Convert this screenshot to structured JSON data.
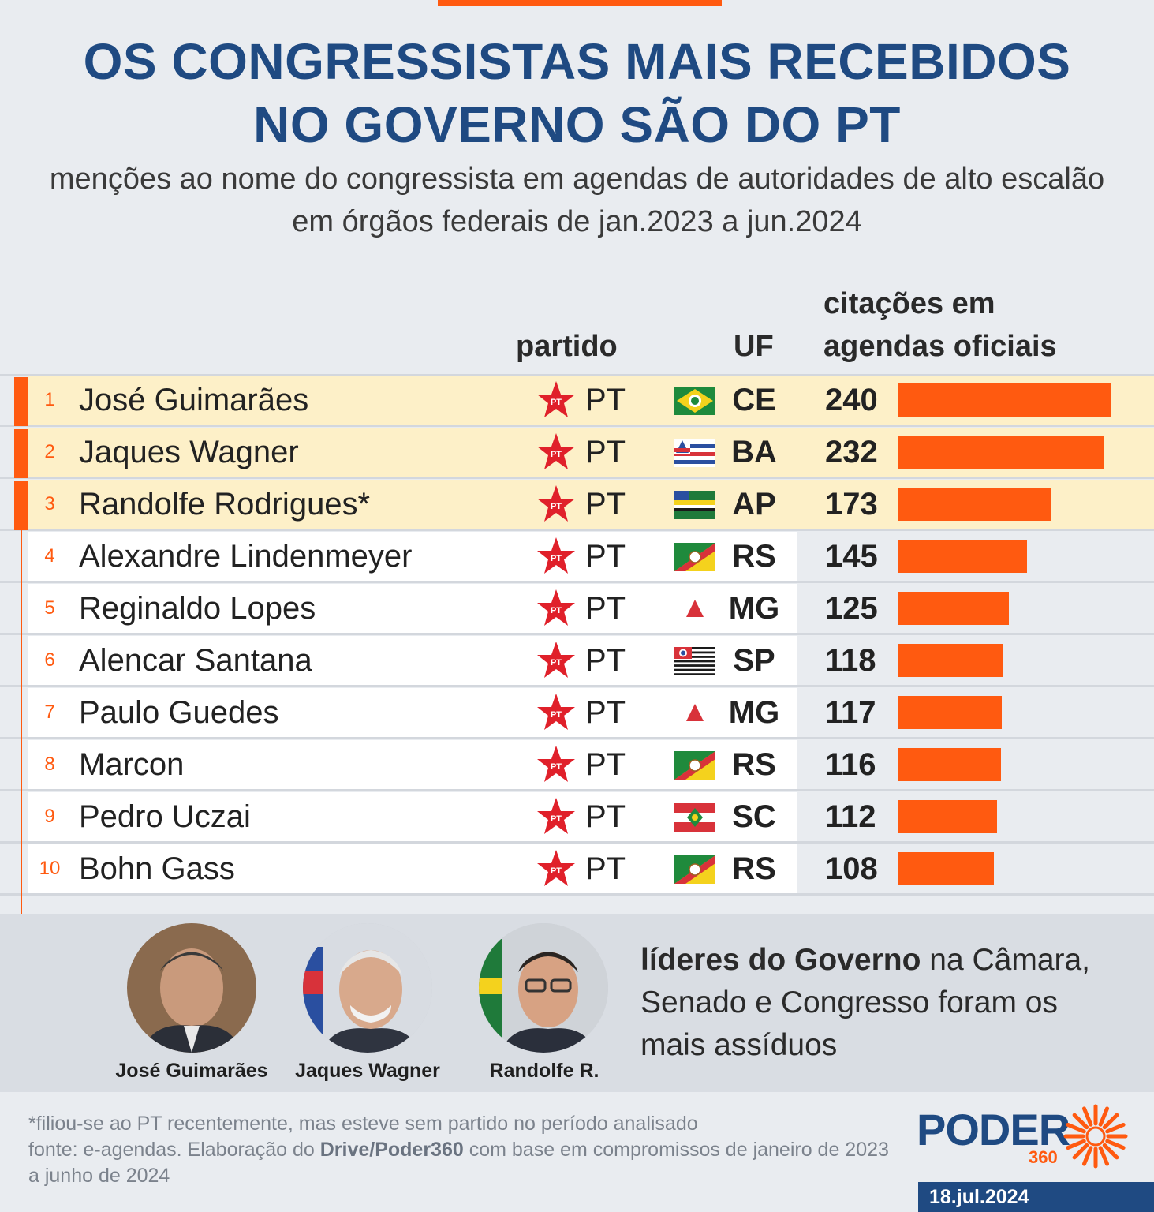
{
  "title_line1": "OS CONGRESSISTAS MAIS RECEBIDOS",
  "title_line2": "NO GOVERNO SÃO DO PT",
  "subtitle": "menções ao nome do congressista em agendas de autoridades de alto escalão em órgãos federais de jan.2023 a jun.2024",
  "columns": {
    "partido": "partido",
    "uf": "UF",
    "citacoes_line1": "citações em",
    "citacoes_line2": "agendas oficiais"
  },
  "colors": {
    "accent": "#ff5a10",
    "brand": "#1f4a82",
    "highlight": "#fdf0c8"
  },
  "chart_data": {
    "type": "bar",
    "orientation": "horizontal",
    "categories": [
      "José Guimarães",
      "Jaques Wagner",
      "Randolfe Rodrigues*",
      "Alexandre Lindenmeyer",
      "Reginaldo Lopes",
      "Alencar Santana",
      "Paulo Guedes",
      "Marcon",
      "Pedro Uczai",
      "Bohn Gass"
    ],
    "values": [
      240,
      232,
      173,
      145,
      125,
      118,
      117,
      116,
      112,
      108
    ],
    "xlim": [
      0,
      240
    ],
    "rows": [
      {
        "rank": "1",
        "name": "José Guimarães",
        "party": "PT",
        "uf": "CE",
        "flag": "ceara-flag",
        "value": "240",
        "highlight": true
      },
      {
        "rank": "2",
        "name": "Jaques Wagner",
        "party": "PT",
        "uf": "BA",
        "flag": "bahia-flag",
        "value": "232",
        "highlight": true
      },
      {
        "rank": "3",
        "name": "Randolfe Rodrigues*",
        "party": "PT",
        "uf": "AP",
        "flag": "amapa-flag",
        "value": "173",
        "highlight": true
      },
      {
        "rank": "4",
        "name": "Alexandre Lindenmeyer",
        "party": "PT",
        "uf": "RS",
        "flag": "rio-grande-do-sul-flag",
        "value": "145",
        "highlight": false
      },
      {
        "rank": "5",
        "name": "Reginaldo Lopes",
        "party": "PT",
        "uf": "MG",
        "flag": "minas-gerais-flag",
        "value": "125",
        "highlight": false
      },
      {
        "rank": "6",
        "name": "Alencar Santana",
        "party": "PT",
        "uf": "SP",
        "flag": "sao-paulo-flag",
        "value": "118",
        "highlight": false
      },
      {
        "rank": "7",
        "name": "Paulo Guedes",
        "party": "PT",
        "uf": "MG",
        "flag": "minas-gerais-flag",
        "value": "117",
        "highlight": false
      },
      {
        "rank": "8",
        "name": "Marcon",
        "party": "PT",
        "uf": "RS",
        "flag": "rio-grande-do-sul-flag",
        "value": "116",
        "highlight": false
      },
      {
        "rank": "9",
        "name": "Pedro Uczai",
        "party": "PT",
        "uf": "SC",
        "flag": "santa-catarina-flag",
        "value": "112",
        "highlight": false
      },
      {
        "rank": "10",
        "name": "Bohn Gass",
        "party": "PT",
        "uf": "RS",
        "flag": "rio-grande-do-sul-flag",
        "value": "108",
        "highlight": false
      }
    ]
  },
  "leaders": {
    "captions": [
      "José Guimarães",
      "Jaques Wagner",
      "Randolfe R."
    ],
    "text_bold": "líderes do Governo",
    "text_rest": " na Câmara, Senado e Congresso foram os mais assíduos"
  },
  "footer": {
    "note": "*filiou-se ao PT recentemente, mas esteve sem partido no período analisado",
    "source_prefix": "fonte: e-agendas. Elaboração do ",
    "source_bold": "Drive/Poder360",
    "source_suffix": " com base em compromissos de janeiro de 2023 a junho de 2024",
    "logo_word": "PODER",
    "logo_number": "360",
    "date": "18.jul.2024"
  }
}
